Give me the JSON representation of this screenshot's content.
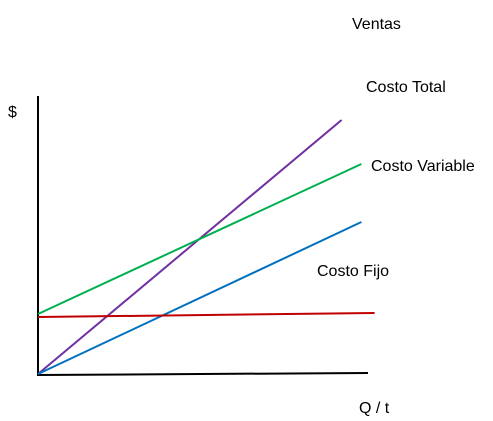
{
  "chart_data": {
    "type": "line",
    "title": "",
    "xlabel": "Q / t",
    "ylabel": "$",
    "xlim": [
      0,
      100
    ],
    "ylim": [
      0,
      100
    ],
    "grid": false,
    "legend": "none",
    "series": [
      {
        "name": "Ventas",
        "color": "#7030a0",
        "x": [
          0,
          92
        ],
        "y": [
          0,
          127
        ]
      },
      {
        "name": "Costo Total",
        "color": "#00b050",
        "x": [
          0,
          98
        ],
        "y": [
          30,
          105
        ]
      },
      {
        "name": "Costo Variable",
        "color": "#0070c0",
        "x": [
          0,
          98
        ],
        "y": [
          0,
          76
        ]
      },
      {
        "name": "Costo Fijo",
        "color": "#c00000",
        "x": [
          0,
          102
        ],
        "y": [
          28.5,
          30.5
        ]
      }
    ]
  }
}
